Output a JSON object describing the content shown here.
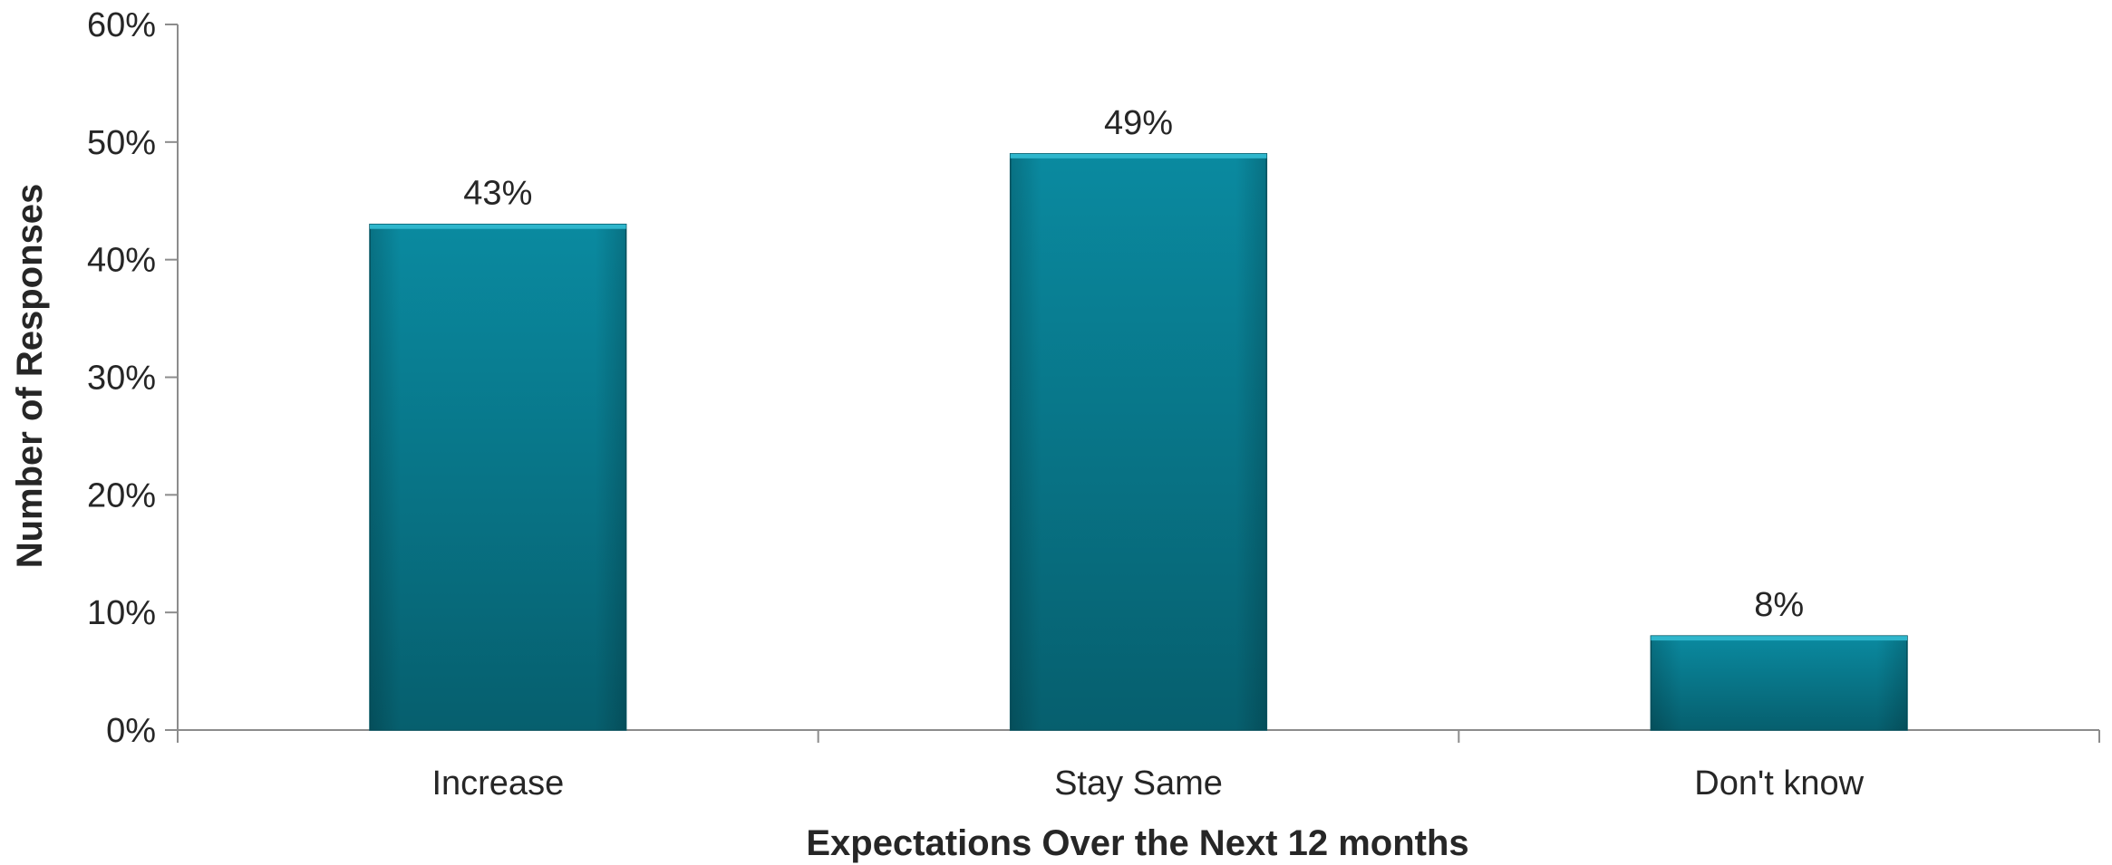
{
  "chart_data": {
    "type": "bar",
    "categories": [
      "Increase",
      "Stay Same",
      "Don't know"
    ],
    "values": [
      43,
      49,
      8
    ],
    "data_labels": [
      "43%",
      "49%",
      "8%"
    ],
    "title": "",
    "xlabel": "Expectations Over the Next 12 months",
    "ylabel": "Number of Responses",
    "ylim": [
      0,
      60
    ],
    "yticks": [
      0,
      10,
      20,
      30,
      40,
      50,
      60
    ],
    "ytick_labels": [
      "0%",
      "10%",
      "20%",
      "30%",
      "40%",
      "50%",
      "60%"
    ],
    "grid": false,
    "legend": "none",
    "bar_color": "#0a7f93"
  }
}
